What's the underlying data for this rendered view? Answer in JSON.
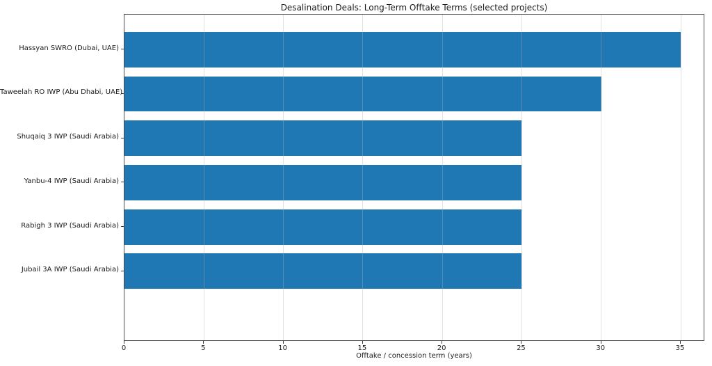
{
  "chart_data": {
    "type": "bar",
    "orientation": "horizontal",
    "title": "Desalination Deals: Long-Term Offtake Terms (selected projects)",
    "categories": [
      "Hassyan SWRO (Dubai, UAE)",
      "Taweelah RO IWP (Abu Dhabi, UAE)",
      "Shuqaiq 3 IWP (Saudi Arabia)",
      "Yanbu-4 IWP (Saudi Arabia)",
      "Rabigh 3 IWP (Saudi Arabia)",
      "Jubail 3A IWP (Saudi Arabia)"
    ],
    "values": [
      35,
      30,
      25,
      25,
      25,
      25
    ],
    "xlabel": "Offtake / concession term (years)",
    "ylabel": "",
    "xlim": [
      0,
      36.53
    ],
    "xticks": [
      0,
      5,
      10,
      15,
      20,
      25,
      30,
      35
    ],
    "bar_color": "#1f77b4",
    "bar_height_fraction": 0.8,
    "grid": "x",
    "grid_color": "rgba(176,176,176,0.38)",
    "legend": "none"
  }
}
